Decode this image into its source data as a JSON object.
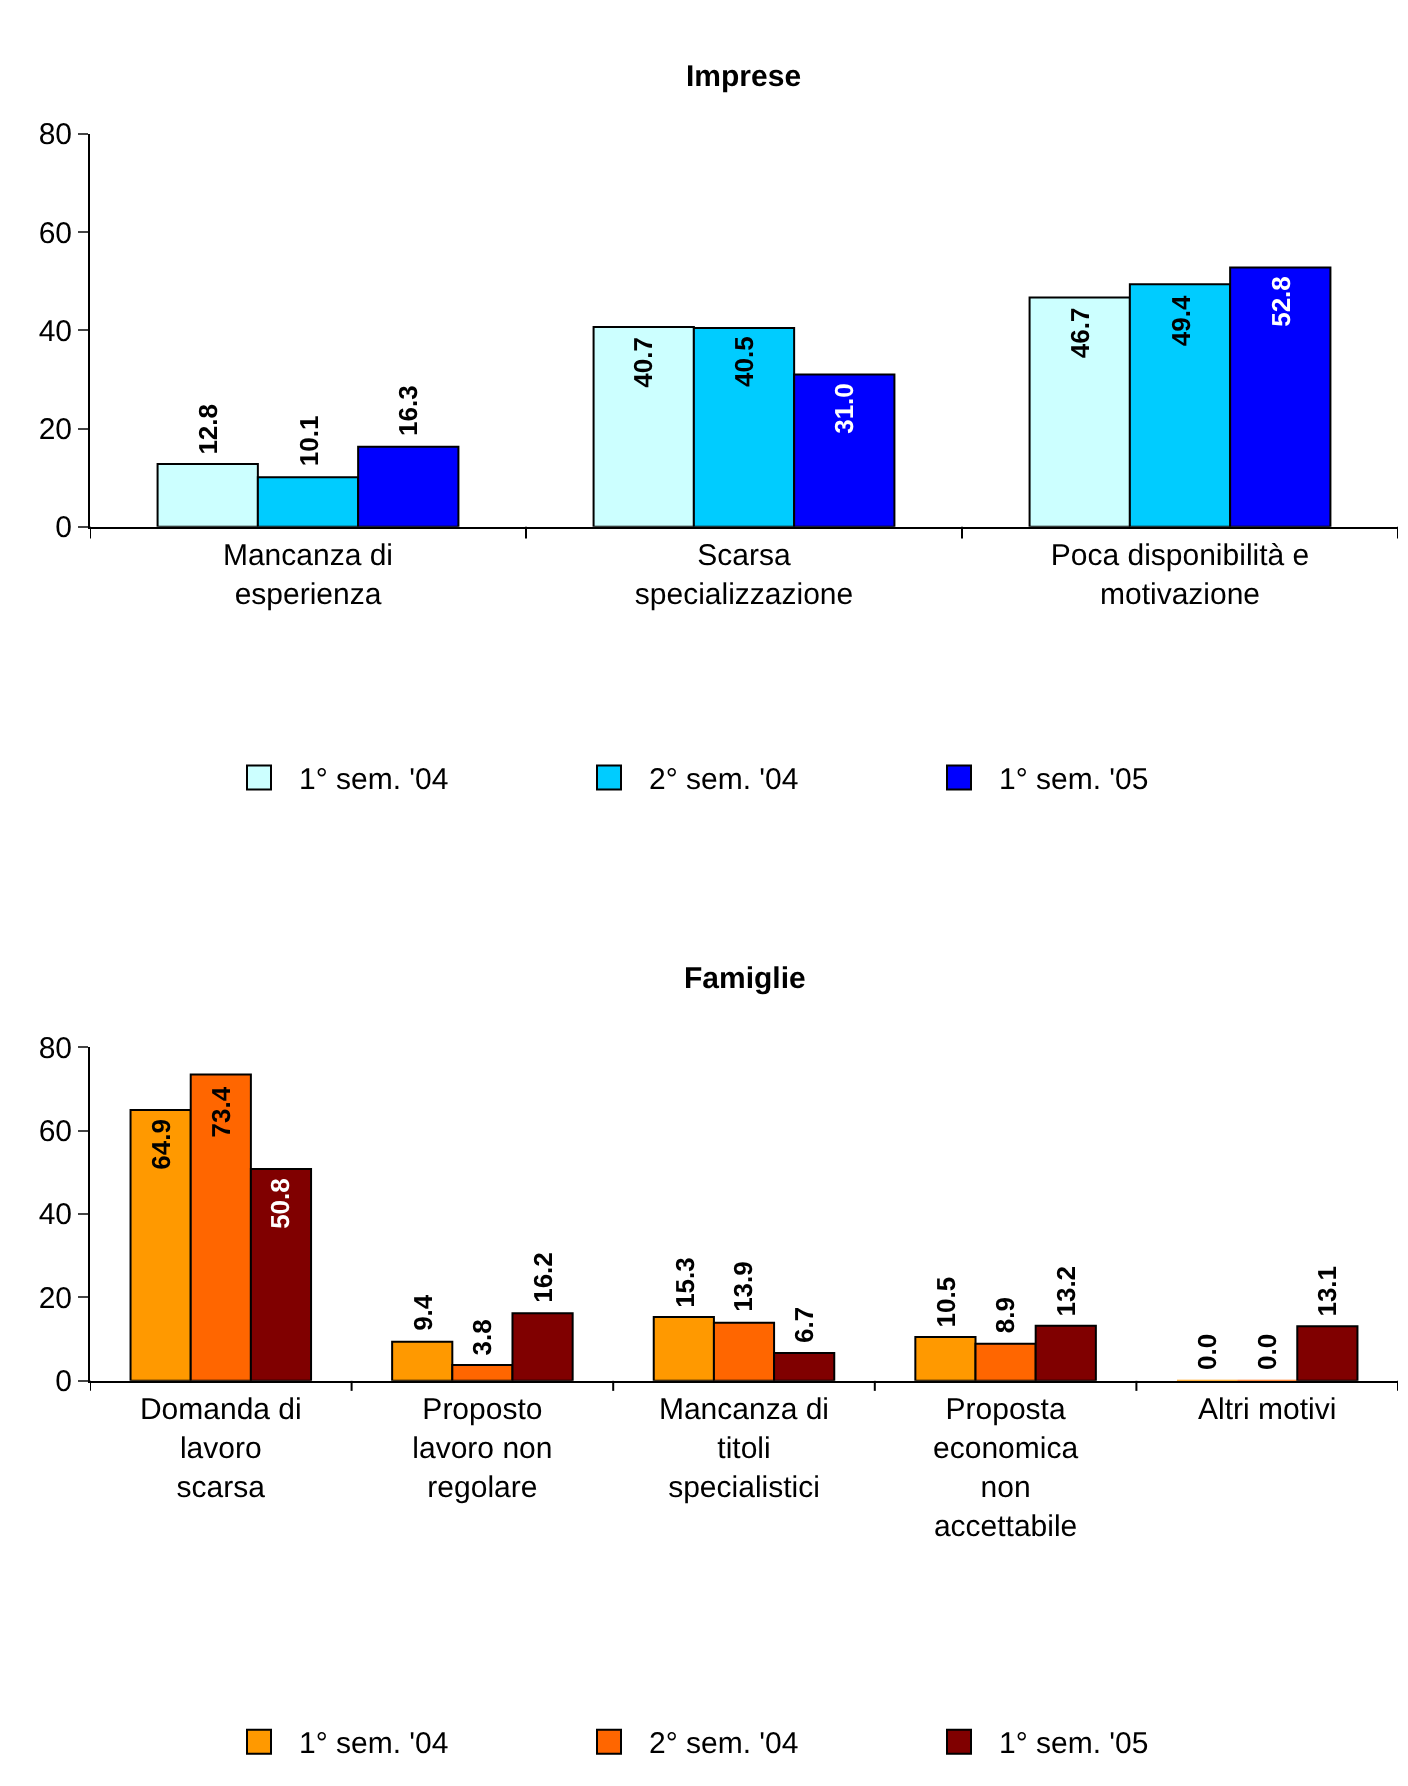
{
  "chart_data": [
    {
      "type": "bar",
      "title": "Imprese",
      "categories": [
        "Mancanza di esperienza",
        "Scarsa specializzazione",
        "Poca disponibilità e motivazione"
      ],
      "series": [
        {
          "name": "1° sem. '04",
          "color": "#ccffff",
          "values": [
            12.8,
            40.7,
            46.7
          ],
          "value_labels": [
            "12.8",
            "40.7",
            "46.7"
          ]
        },
        {
          "name": "2° sem. '04",
          "color": "#00ccff",
          "values": [
            10.1,
            40.5,
            49.4
          ],
          "value_labels": [
            "10.1",
            "40.5",
            "49.4"
          ]
        },
        {
          "name": "1° sem. '05",
          "color": "#0000ff",
          "values": [
            16.3,
            31.0,
            52.8
          ],
          "value_labels": [
            "16.3",
            "31.0",
            "52.8"
          ]
        }
      ],
      "ylim": [
        0,
        80
      ],
      "yticks": [
        0,
        20,
        40,
        60,
        80
      ],
      "grid": false,
      "legend": "bottom"
    },
    {
      "type": "bar",
      "title": "Famiglie",
      "categories": [
        "Domanda di lavoro scarsa",
        "Proposto lavoro non regolare",
        "Mancanza di titoli specialistici",
        "Proposta economica non accettabile",
        "Altri motivi"
      ],
      "series": [
        {
          "name": "1° sem. '04",
          "color": "#ff9900",
          "values": [
            64.9,
            9.4,
            15.3,
            10.5,
            0.0
          ],
          "value_labels": [
            "64.9",
            "9.4",
            "15.3",
            "10.5",
            "0.0"
          ]
        },
        {
          "name": "2° sem. '04",
          "color": "#ff6600",
          "values": [
            73.4,
            3.8,
            13.9,
            8.9,
            0.0
          ],
          "value_labels": [
            "73.4",
            "3.8",
            "13.9",
            "8.9",
            "0.0"
          ]
        },
        {
          "name": "1° sem. '05",
          "color": "#800000",
          "values": [
            50.8,
            16.2,
            6.7,
            13.2,
            13.1
          ],
          "value_labels": [
            "50.8",
            "16.2",
            "6.7",
            "13.2",
            "13.1"
          ]
        }
      ],
      "ylim": [
        0,
        80
      ],
      "yticks": [
        0,
        20,
        40,
        60,
        80
      ],
      "grid": false,
      "legend": "bottom"
    }
  ]
}
